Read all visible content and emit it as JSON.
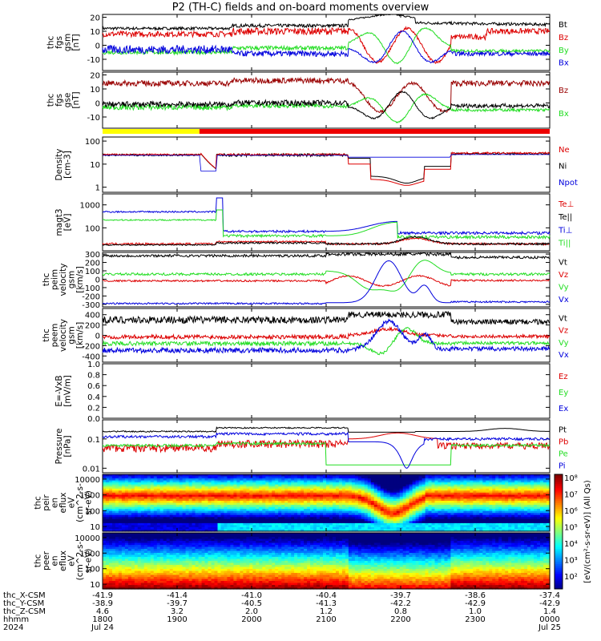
{
  "title": "P2 (TH-C) fields and on-board moments overview",
  "colors": {
    "black": "#000000",
    "red": "#dd0000",
    "dark_red": "#990000",
    "green": "#22dd22",
    "blue": "#0000dd",
    "yellow": "#ffff00",
    "bar_red": "#ee0000"
  },
  "chart_data": [
    {
      "type": "line",
      "id": "fgs",
      "ylabel": [
        "thc",
        "fgs",
        "gsm",
        "[nT]"
      ],
      "ylim": [
        -18,
        22
      ],
      "yticks": [
        -10,
        0,
        10,
        20
      ],
      "series": [
        {
          "name": "Bt",
          "color": "black"
        },
        {
          "name": "Bz",
          "color": "red"
        },
        {
          "name": "By",
          "color": "green"
        },
        {
          "name": "Bx",
          "color": "blue"
        }
      ]
    },
    {
      "type": "line",
      "id": "fgs2",
      "ylabel": [
        "thc",
        "fgs",
        "gse",
        "[nT]"
      ],
      "ylim": [
        -18,
        22
      ],
      "yticks": [
        -10,
        0,
        10,
        20
      ],
      "series": [
        {
          "name": "Bz",
          "color": "dark_red"
        },
        {
          "name": "Bx",
          "color": "green"
        }
      ]
    },
    {
      "type": "bar",
      "id": "mode",
      "segments": [
        {
          "from": "1800",
          "to": "1918",
          "color": "yellow"
        },
        {
          "from": "1918",
          "to": "0000",
          "color": "bar_red"
        }
      ]
    },
    {
      "type": "line",
      "id": "density",
      "ylabel": [
        "Density",
        "[cm-3]"
      ],
      "scale": "log",
      "ylim": [
        0.6,
        150
      ],
      "yticks": [
        1,
        10,
        100
      ],
      "series": [
        {
          "name": "Ne",
          "color": "red"
        },
        {
          "name": "Ni",
          "color": "black"
        },
        {
          "name": "Npot",
          "color": "blue"
        }
      ]
    },
    {
      "type": "line",
      "id": "temp",
      "ylabel": [
        "magt3",
        "[eV]"
      ],
      "scale": "log",
      "ylim": [
        10,
        3000
      ],
      "yticks": [
        100,
        1000
      ],
      "series": [
        {
          "name": "Te⊥",
          "color": "red"
        },
        {
          "name": "Te||",
          "color": "black"
        },
        {
          "name": "Ti⊥",
          "color": "blue"
        },
        {
          "name": "Ti||",
          "color": "green"
        }
      ]
    },
    {
      "type": "line",
      "id": "vi",
      "ylabel": [
        "thc",
        "peim",
        "velocity",
        "gsm",
        "[km/s]"
      ],
      "ylim": [
        -330,
        320
      ],
      "yticks": [
        -300,
        -200,
        -100,
        0,
        100,
        200,
        300
      ],
      "series": [
        {
          "name": "Vt",
          "color": "black"
        },
        {
          "name": "Vz",
          "color": "red"
        },
        {
          "name": "Vy",
          "color": "green"
        },
        {
          "name": "Vx",
          "color": "blue"
        }
      ]
    },
    {
      "type": "line",
      "id": "ve",
      "ylabel": [
        "thc",
        "peem",
        "velocity",
        "gsm",
        "[km/s]"
      ],
      "ylim": [
        -520,
        520
      ],
      "yticks": [
        -400,
        -200,
        0,
        200,
        400
      ],
      "series": [
        {
          "name": "Vt",
          "color": "black"
        },
        {
          "name": "Vz",
          "color": "red"
        },
        {
          "name": "Vy",
          "color": "green"
        },
        {
          "name": "Vx",
          "color": "blue"
        }
      ]
    },
    {
      "type": "line",
      "id": "efield",
      "ylabel": [
        "E=-VxB",
        "[mV/m]"
      ],
      "ylim": [
        0,
        1
      ],
      "yticks": [
        0.0,
        0.2,
        0.4,
        0.6,
        0.8,
        1.0
      ],
      "series": [
        {
          "name": "Ez",
          "color": "red"
        },
        {
          "name": "Ey",
          "color": "green"
        },
        {
          "name": "Ex",
          "color": "blue"
        }
      ]
    },
    {
      "type": "line",
      "id": "pressure",
      "ylabel": [
        "Pressure",
        "[nPa]"
      ],
      "scale": "log",
      "ylim": [
        0.007,
        0.45
      ],
      "yticks": [
        0.01,
        0.1
      ],
      "series": [
        {
          "name": "Pt",
          "color": "black"
        },
        {
          "name": "Pb",
          "color": "red"
        },
        {
          "name": "Pe",
          "color": "green"
        },
        {
          "name": "Pi",
          "color": "blue"
        }
      ]
    },
    {
      "type": "heatmap",
      "id": "peir",
      "ylabel": [
        "thc",
        "peir",
        "en",
        "eflux",
        "eV",
        "(cm^2-s-",
        "sr-eV)"
      ],
      "scale": "log",
      "ylim": [
        5,
        20000
      ],
      "yticks": [
        10,
        100,
        1000,
        10000
      ]
    },
    {
      "type": "heatmap",
      "id": "peer",
      "ylabel": [
        "thc",
        "peer",
        "en",
        "eflux",
        "eV",
        "(cm^2-s-",
        "sr-eV)"
      ],
      "scale": "log",
      "ylim": [
        5,
        20000
      ],
      "yticks": [
        10,
        100,
        1000,
        10000
      ]
    }
  ],
  "colorbar": {
    "labels": [
      "10⁸",
      "10⁷",
      "10⁶",
      "10⁵",
      "10⁴",
      "10³",
      "10²"
    ],
    "title": "[eV/(cm²-s-sr-eV)] (All Qs)"
  },
  "x_axis": {
    "row_labels": [
      "thc_X-CSM",
      "thc_Y-CSM",
      "thc_Z-CSM",
      "hhmm",
      "2024"
    ],
    "columns": [
      [
        "-41.9",
        "-38.9",
        "4.6",
        "1800",
        "Jul 24"
      ],
      [
        "-41.4",
        "-39.7",
        "3.2",
        "1900",
        ""
      ],
      [
        "-41.0",
        "-40.5",
        "2.0",
        "2000",
        ""
      ],
      [
        "-40.4",
        "-41.3",
        "1.2",
        "2100",
        ""
      ],
      [
        "-39.7",
        "-42.2",
        "0.8",
        "2200",
        ""
      ],
      [
        "-38.6",
        "-42.9",
        "1.0",
        "2300",
        ""
      ],
      [
        "-37.4",
        "-42.9",
        "1.4",
        "0000",
        "Jul 25"
      ]
    ]
  }
}
